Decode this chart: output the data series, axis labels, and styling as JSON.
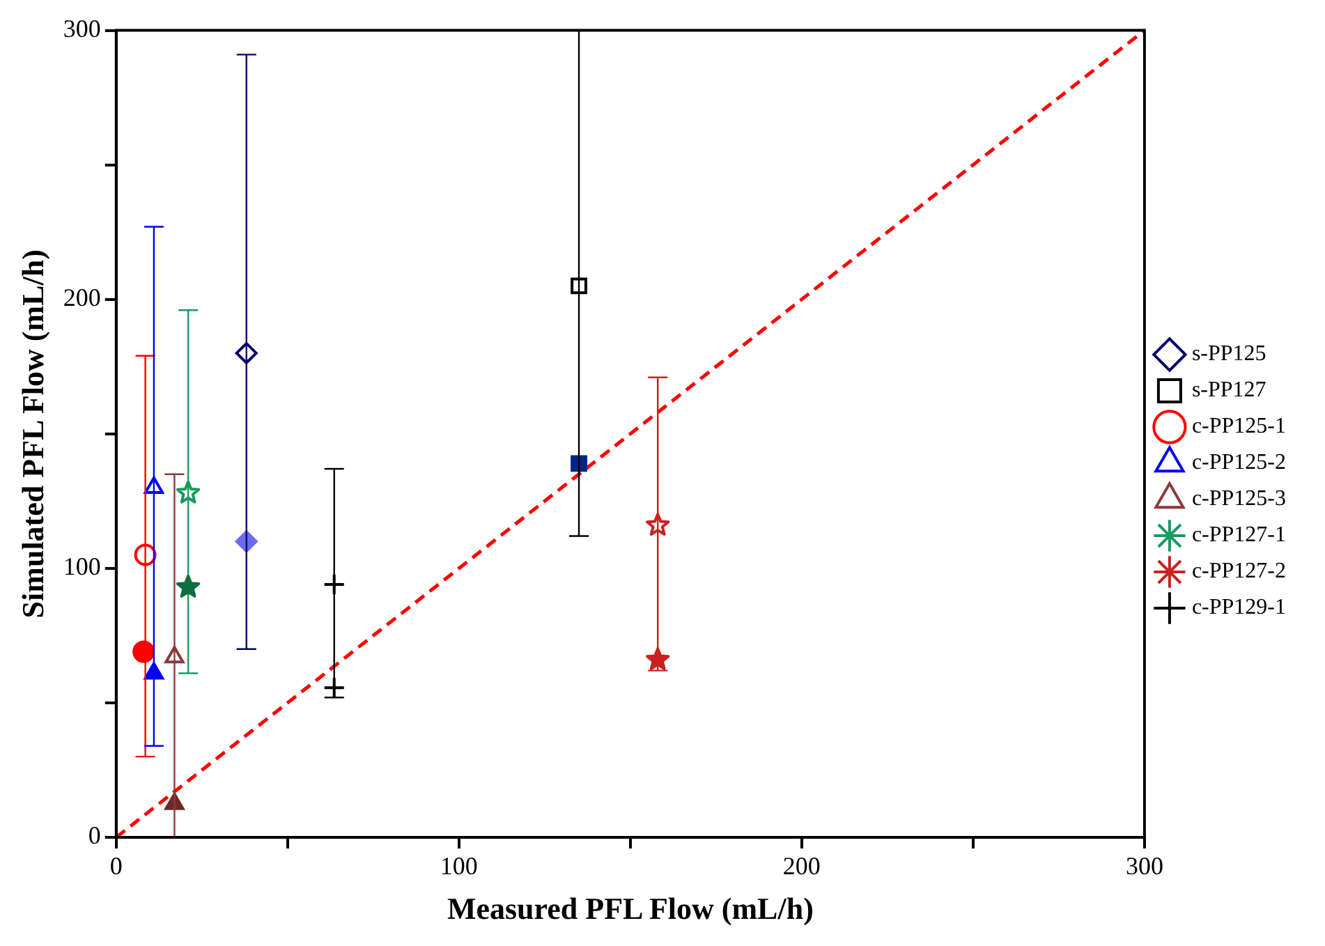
{
  "chart_data": {
    "type": "scatter",
    "xlabel": "Measured PFL Flow (mL/h)",
    "ylabel": "Simulated PFL Flow (mL/h)",
    "xlim": [
      0,
      300
    ],
    "ylim": [
      0,
      300
    ],
    "xticks": [
      0,
      {
        "value": 50,
        "label": null
      },
      100,
      {
        "value": 150,
        "label": null
      },
      200,
      {
        "value": 250,
        "label": null
      },
      300
    ],
    "yticks": [
      0,
      {
        "value": 50,
        "label": null
      },
      100,
      {
        "value": 150,
        "label": null
      },
      200,
      {
        "value": 250,
        "label": null
      },
      300
    ],
    "grid": false,
    "legend": "right",
    "series": [
      {
        "name": "s-PP125",
        "color": "#00006e",
        "marker": "diamond",
        "x": [
          38
        ],
        "values": [
          180
        ],
        "errors": [
          [
            70,
            291
          ]
        ]
      },
      {
        "color": "#6b6bf0",
        "marker": "diamond",
        "x": [
          38
        ],
        "values": [
          110
        ]
      },
      {
        "name": "s-PP127",
        "color": "#000000",
        "marker": "square",
        "x": [
          135
        ],
        "values": [
          205
        ],
        "errors": [
          [
            112,
            300
          ]
        ]
      },
      {
        "color": "#00238c",
        "marker": "square",
        "x": [
          135
        ],
        "values": [
          139
        ]
      },
      {
        "name": "c-PP125-1",
        "color": "#ff0000",
        "marker": "circle",
        "x": [
          8.5
        ],
        "values": [
          105
        ],
        "errors": [
          [
            30,
            179
          ]
        ]
      },
      {
        "color": "#ff0000",
        "marker": "circle",
        "x": [
          8
        ],
        "values": [
          69
        ]
      },
      {
        "name": "c-PP125-2",
        "color": "#0000ff",
        "marker": "triangle",
        "x": [
          11
        ],
        "values": [
          130
        ],
        "errors": [
          [
            34,
            227
          ]
        ]
      },
      {
        "color": "#0000ff",
        "marker": "triangle",
        "x": [
          11
        ],
        "values": [
          61
        ]
      },
      {
        "name": "c-PP125-3",
        "color": "#8b3a3a",
        "marker": "triangle",
        "x": [
          17
        ],
        "values": [
          67
        ],
        "errors": [
          [
            0,
            135
          ]
        ]
      },
      {
        "color": "#6b2a2a",
        "marker": "triangle",
        "x": [
          17
        ],
        "values": [
          12.5
        ]
      },
      {
        "name": "c-PP127-1",
        "color": "#1a9960",
        "marker": "star",
        "x": [
          21
        ],
        "values": [
          128
        ],
        "errors": [
          [
            61,
            196
          ]
        ]
      },
      {
        "color": "#0d6e40",
        "marker": "star",
        "x": [
          21
        ],
        "values": [
          93
        ]
      },
      {
        "name": "c-PP127-2",
        "color": "#cc2020",
        "marker": "star",
        "x": [
          158
        ],
        "values": [
          116
        ],
        "errors": [
          [
            62,
            171
          ]
        ]
      },
      {
        "color": "#cc2020",
        "marker": "star",
        "x": [
          158
        ],
        "values": [
          66
        ]
      },
      {
        "name": "c-PP129-1",
        "color": "#000000",
        "marker": "cross",
        "x": [
          63.6
        ],
        "values": [
          94
        ],
        "errors": [
          [
            52,
            137
          ]
        ]
      },
      {
        "color": "#000000",
        "marker": "cross",
        "x": [
          63.6
        ],
        "values": [
          55.6
        ]
      },
      {
        "type": "line",
        "color": "#ff0000",
        "marker": "none",
        "line_style": "dashed",
        "x": [
          0,
          300
        ],
        "values": [
          0,
          300
        ]
      }
    ]
  }
}
